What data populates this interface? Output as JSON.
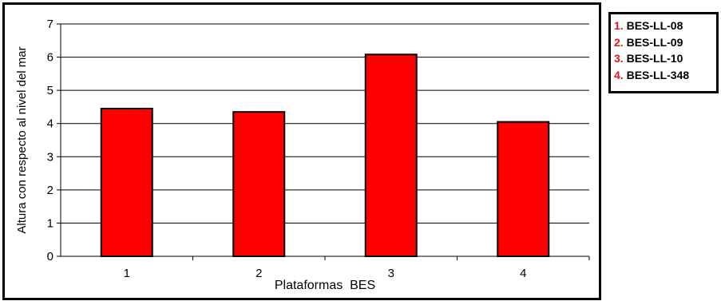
{
  "chart_data": {
    "type": "bar",
    "categories": [
      "1",
      "2",
      "3",
      "4"
    ],
    "values": [
      4.45,
      4.35,
      6.08,
      4.05
    ],
    "xlabel": "Plataformas  BES",
    "ylabel": "Altura con respecto al nivel del mar",
    "ylim": [
      0,
      7
    ],
    "yticks": [
      0,
      1,
      2,
      3,
      4,
      5,
      6,
      7
    ],
    "grid": true,
    "bar_color": "#ff0000",
    "legend_placement": "right",
    "legend": [
      {
        "num": "1.",
        "label": "BES-LL-08"
      },
      {
        "num": "2.",
        "label": "BES-LL-09"
      },
      {
        "num": "3.",
        "label": "BES-LL-10"
      },
      {
        "num": "4.",
        "label": "BES-LL-348"
      }
    ]
  }
}
